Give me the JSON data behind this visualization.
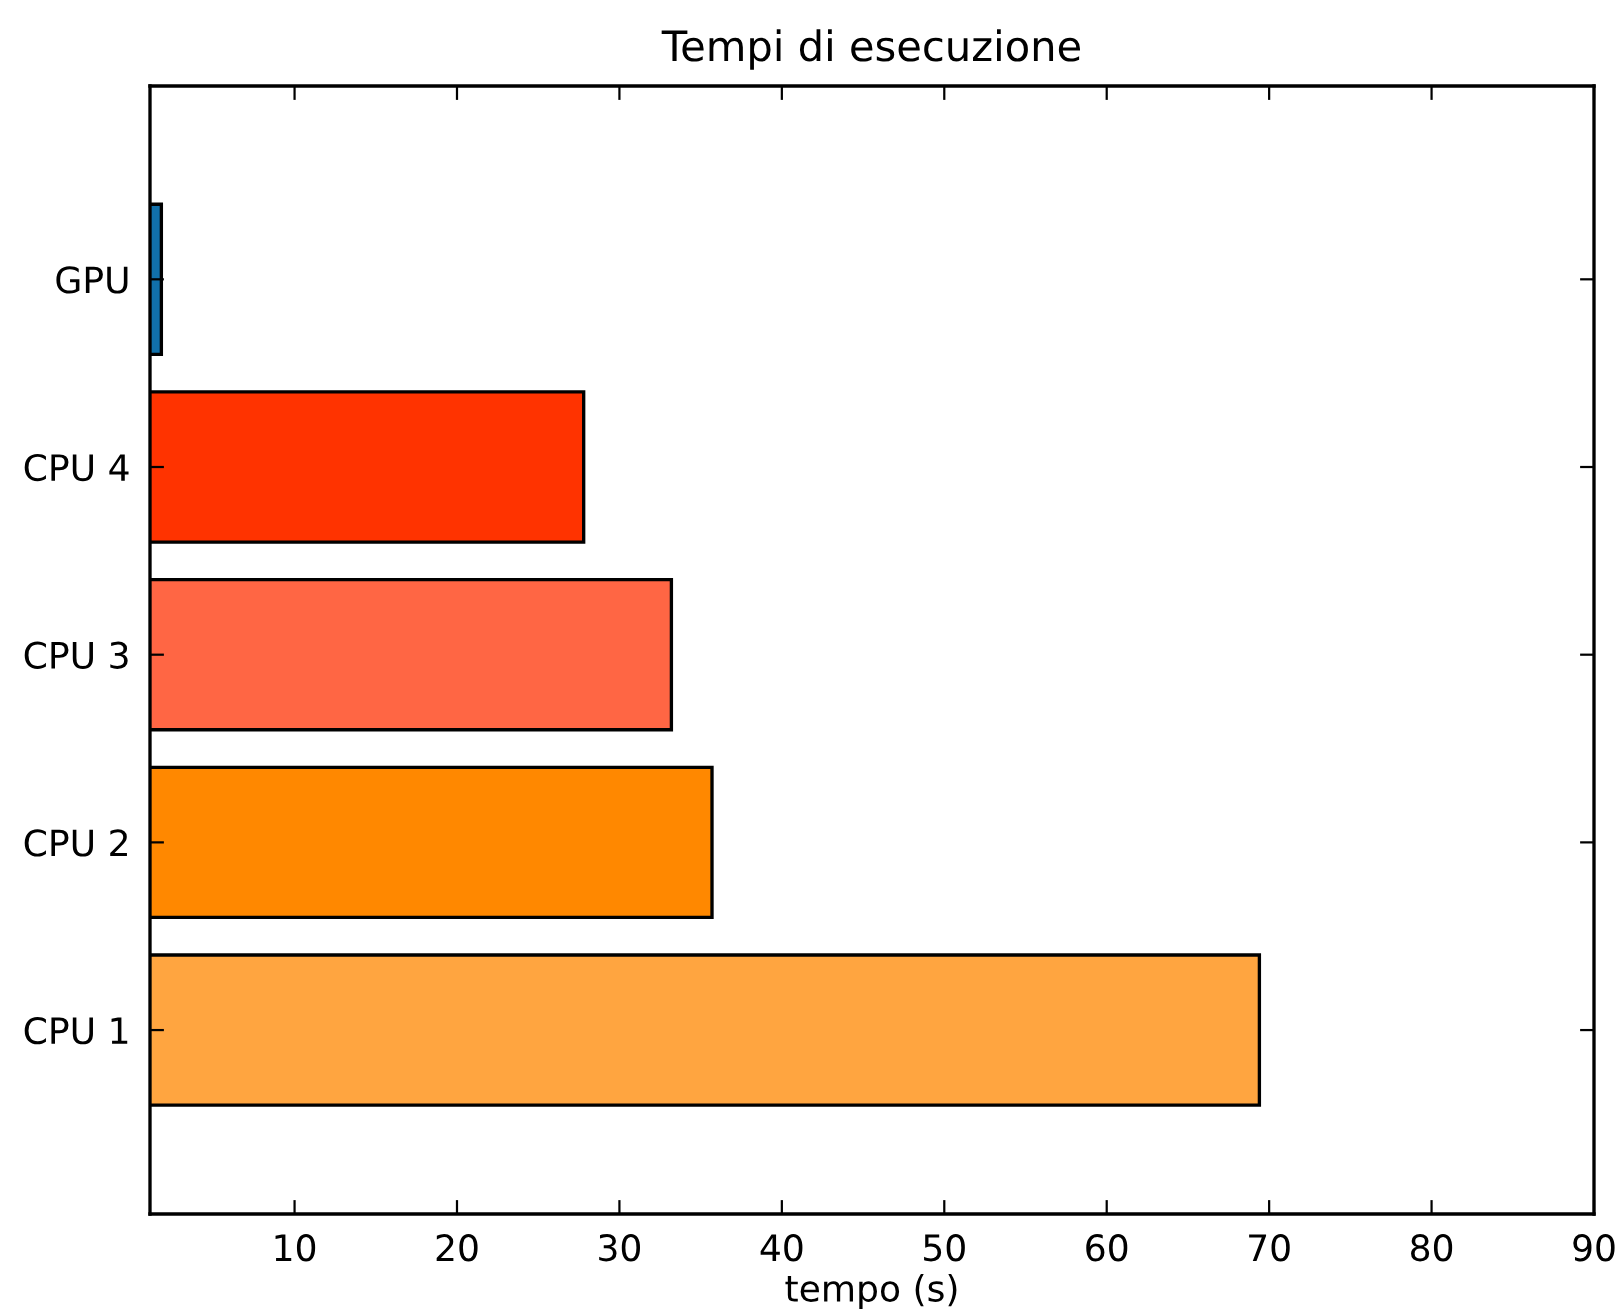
{
  "chart_data": {
    "type": "bar",
    "orientation": "horizontal",
    "title": "Tempi di esecuzione",
    "xlabel": "tempo (s)",
    "categories": [
      "GPU",
      "CPU 4",
      "CPU 3",
      "CPU 2",
      "CPU 1"
    ],
    "values": [
      1.8,
      27.8,
      33.2,
      35.7,
      69.4
    ],
    "colors": [
      "#1170aa",
      "#ff3300",
      "#ff6644",
      "#ff8800",
      "#ffa540"
    ],
    "xlim": [
      1.1,
      90
    ],
    "xticks": [
      10,
      20,
      30,
      40,
      50,
      60,
      70,
      80,
      90
    ],
    "grid": false,
    "legend": false
  }
}
